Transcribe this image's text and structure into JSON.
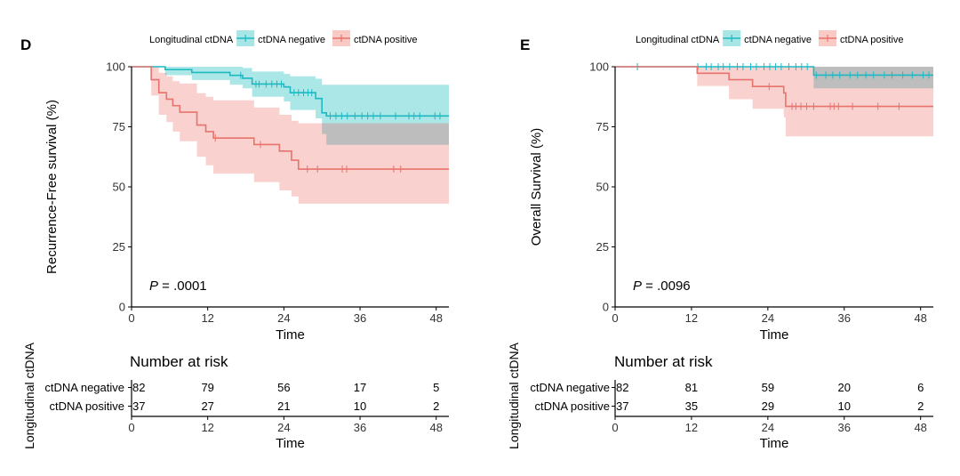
{
  "chart_data": [
    {
      "type": "line",
      "panel_label": "D",
      "legend": {
        "title": "Longitudinal ctDNA",
        "entries": [
          "ctDNA negative",
          "ctDNA positive"
        ],
        "position": "top"
      },
      "ylabel": "Recurrence-Free survival (%)",
      "xlabel": "Time",
      "xlim": [
        0,
        50
      ],
      "ylim": [
        0,
        100
      ],
      "xticks": [
        "0",
        "12",
        "24",
        "36",
        "48"
      ],
      "yticks": [
        "0",
        "25",
        "50",
        "75",
        "100"
      ],
      "pvalue_label": "P",
      "pvalue_text": " = .0001",
      "colors": {
        "negative": "#1DB9C3",
        "positive": "#E8736C",
        "ci_negative": "#A8E6E6",
        "ci_positive": "#F8C9C5",
        "ci_overlap": "#BDBDBD"
      },
      "series": [
        {
          "name": "ctDNA negative",
          "steps": [
            [
              0,
              100
            ],
            [
              5.3,
              98.8
            ],
            [
              9.5,
              97.6
            ],
            [
              15.5,
              96.4
            ],
            [
              17.5,
              95.2
            ],
            [
              19,
              92.8
            ],
            [
              24,
              91.6
            ],
            [
              25,
              89.2
            ],
            [
              29,
              86.8
            ],
            [
              30,
              80.8
            ],
            [
              30.7,
              79.5
            ],
            [
              50,
              79.5
            ]
          ],
          "ci_lower": [
            [
              0,
              100
            ],
            [
              5.3,
              96.5
            ],
            [
              9.5,
              94.5
            ],
            [
              15.5,
              92.5
            ],
            [
              17.5,
              91
            ],
            [
              19,
              87.5
            ],
            [
              24,
              85.5
            ],
            [
              25,
              82
            ],
            [
              29,
              78.5
            ],
            [
              30,
              72
            ],
            [
              30.7,
              67.5
            ],
            [
              50,
              67.5
            ]
          ],
          "ci_upper": [
            [
              0,
              100
            ],
            [
              5.3,
              100
            ],
            [
              9.5,
              100
            ],
            [
              15.5,
              100
            ],
            [
              17.5,
              99.5
            ],
            [
              19,
              98
            ],
            [
              24,
              97
            ],
            [
              25,
              96
            ],
            [
              29,
              95
            ],
            [
              30,
              92.5
            ],
            [
              50,
              92.5
            ]
          ],
          "censor_times": [
            17.2,
            19.6,
            20.1,
            21.2,
            22.1,
            22.9,
            23.6,
            25.6,
            26.3,
            27.1,
            27.8,
            28.4,
            31.3,
            32.2,
            33.1,
            34,
            35.2,
            36.3,
            37.2,
            38.1,
            39.2,
            41.6,
            43.7,
            44.5,
            45.4,
            47.8,
            48.6
          ]
        },
        {
          "name": "ctDNA positive",
          "steps": [
            [
              0,
              100
            ],
            [
              3.1,
              94.6
            ],
            [
              4.3,
              89.2
            ],
            [
              5.5,
              86.5
            ],
            [
              6.5,
              83.8
            ],
            [
              7.6,
              81.1
            ],
            [
              10.3,
              75.7
            ],
            [
              11.7,
              73
            ],
            [
              12.9,
              70.3
            ],
            [
              19.3,
              67.6
            ],
            [
              23.3,
              64.9
            ],
            [
              25.2,
              61.1
            ],
            [
              26.3,
              57.4
            ],
            [
              50,
              57.4
            ]
          ],
          "ci_lower": [
            [
              0,
              100
            ],
            [
              3.1,
              88
            ],
            [
              4.3,
              80
            ],
            [
              5.5,
              77
            ],
            [
              6.5,
              73
            ],
            [
              7.6,
              69
            ],
            [
              10.3,
              62.5
            ],
            [
              11.7,
              59
            ],
            [
              12.9,
              55.5
            ],
            [
              19.3,
              52
            ],
            [
              23.3,
              48.5
            ],
            [
              25.2,
              46
            ],
            [
              26.3,
              43
            ],
            [
              50,
              43
            ]
          ],
          "ci_upper": [
            [
              0,
              100
            ],
            [
              3.1,
              100
            ],
            [
              4.3,
              97.5
            ],
            [
              5.5,
              96
            ],
            [
              6.5,
              94
            ],
            [
              7.6,
              93
            ],
            [
              10.3,
              89
            ],
            [
              11.7,
              87.5
            ],
            [
              12.9,
              86
            ],
            [
              19.3,
              83
            ],
            [
              23.3,
              80
            ],
            [
              25.2,
              77.5
            ],
            [
              26.3,
              76.5
            ],
            [
              50,
              76.5
            ]
          ],
          "censor_times": [
            13.2,
            20.3,
            27.7,
            29.3,
            33.2,
            33.9,
            41.3,
            42.4
          ]
        }
      ],
      "risk_table": {
        "title": "Number at risk",
        "strata_title": "Longitudinal ctDNA",
        "times": [
          "0",
          "12",
          "24",
          "36",
          "48"
        ],
        "rows": [
          {
            "label": "ctDNA negative",
            "values": [
              "82",
              "79",
              "56",
              "17",
              "5"
            ]
          },
          {
            "label": "ctDNA positive",
            "values": [
              "37",
              "27",
              "21",
              "10",
              "2"
            ]
          }
        ],
        "xlabel": "Time"
      }
    },
    {
      "type": "line",
      "panel_label": "E",
      "legend": {
        "title": "Longitudinal ctDNA",
        "entries": [
          "ctDNA negative",
          "ctDNA positive"
        ],
        "position": "top"
      },
      "ylabel": "Overall Survival (%)",
      "xlabel": "Time",
      "xlim": [
        0,
        50
      ],
      "ylim": [
        0,
        100
      ],
      "xticks": [
        "0",
        "12",
        "24",
        "36",
        "48"
      ],
      "yticks": [
        "0",
        "25",
        "50",
        "75",
        "100"
      ],
      "pvalue_label": "P",
      "pvalue_text": " = .0096",
      "colors": {
        "negative": "#1DB9C3",
        "positive": "#E8736C",
        "ci_negative": "#A8E6E6",
        "ci_positive": "#F8C9C5",
        "ci_overlap": "#BDBDBD"
      },
      "series": [
        {
          "name": "ctDNA negative",
          "steps": [
            [
              0,
              100
            ],
            [
              31.2,
              96.5
            ],
            [
              50,
              96.5
            ]
          ],
          "ci_lower": [
            [
              0,
              100
            ],
            [
              31.2,
              91
            ],
            [
              50,
              91
            ]
          ],
          "ci_upper": [
            [
              0,
              100
            ],
            [
              50,
              100
            ]
          ],
          "censor_times": [
            3.5,
            13,
            14.3,
            15.1,
            16.2,
            17,
            18,
            19.2,
            20.1,
            21.3,
            22.2,
            23.4,
            24.3,
            25.2,
            26.1,
            27.3,
            28.4,
            29.3,
            30.2,
            31.6,
            33.1,
            34.2,
            35.3,
            36.9,
            38.1,
            39.4,
            40.6,
            42.3,
            43.5,
            45.2,
            46.7,
            48.4,
            49.3
          ]
        },
        {
          "name": "ctDNA positive",
          "steps": [
            [
              0,
              100
            ],
            [
              12.9,
              97.3
            ],
            [
              17.9,
              94.6
            ],
            [
              21.6,
              91.8
            ],
            [
              26.5,
              89.1
            ],
            [
              26.8,
              83.5
            ],
            [
              50,
              83.5
            ]
          ],
          "ci_lower": [
            [
              0,
              100
            ],
            [
              12.9,
              92
            ],
            [
              17.9,
              86.5
            ],
            [
              21.6,
              82.5
            ],
            [
              26.5,
              79
            ],
            [
              26.8,
              71
            ],
            [
              50,
              71
            ]
          ],
          "ci_upper": [
            [
              0,
              100
            ],
            [
              50,
              100
            ]
          ],
          "censor_times": [
            24.2,
            27.8,
            28.4,
            29.2,
            30.1,
            31.2,
            33.8,
            34.4,
            35.1,
            37.3,
            41.3,
            44.6
          ]
        }
      ],
      "risk_table": {
        "title": "Number at risk",
        "strata_title": "Longitudinal ctDNA",
        "times": [
          "0",
          "12",
          "24",
          "36",
          "48"
        ],
        "rows": [
          {
            "label": "ctDNA negative",
            "values": [
              "82",
              "81",
              "59",
              "20",
              "6"
            ]
          },
          {
            "label": "ctDNA positive",
            "values": [
              "37",
              "35",
              "29",
              "10",
              "2"
            ]
          }
        ],
        "xlabel": "Time"
      }
    }
  ]
}
